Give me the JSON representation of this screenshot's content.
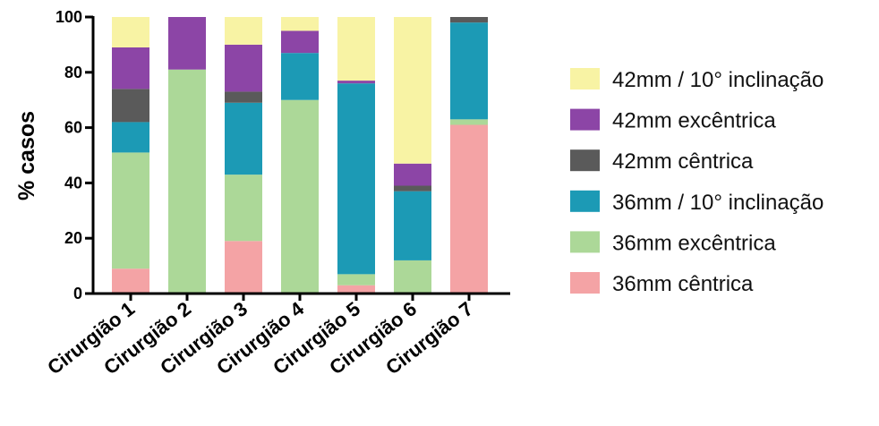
{
  "chart_data": {
    "type": "bar",
    "stacked": true,
    "ylabel": "% casos",
    "xlabel": "",
    "ylim": [
      0,
      100
    ],
    "yticks": [
      0,
      20,
      40,
      60,
      80,
      100
    ],
    "categories": [
      "Cirurgião 1",
      "Cirurgião 2",
      "Cirurgião 3",
      "Cirurgião 4",
      "Cirurgião 5",
      "Cirurgião 6",
      "Cirurgião 7"
    ],
    "legend_position": "right",
    "series": [
      {
        "name": "36mm cêntrica",
        "color": "#f4a3a5",
        "values": [
          9,
          0,
          19,
          0,
          3,
          0,
          61
        ]
      },
      {
        "name": "36mm excêntrica",
        "color": "#acd898",
        "values": [
          42,
          81,
          24,
          70,
          4,
          12,
          2
        ]
      },
      {
        "name": "36mm / 10° inclinação",
        "color": "#1c9ab5",
        "values": [
          11,
          0,
          26,
          17,
          69,
          25,
          35
        ]
      },
      {
        "name": "42mm cêntrica",
        "color": "#5a5a5a",
        "values": [
          12,
          0,
          4,
          0,
          0,
          2,
          2
        ]
      },
      {
        "name": "42mm excêntrica",
        "color": "#8c45a6",
        "values": [
          15,
          19,
          17,
          8,
          1,
          8,
          0
        ]
      },
      {
        "name": "42mm / 10° inclinação",
        "color": "#f8f3a4",
        "values": [
          11,
          0,
          10,
          5,
          23,
          53,
          0
        ]
      }
    ]
  }
}
